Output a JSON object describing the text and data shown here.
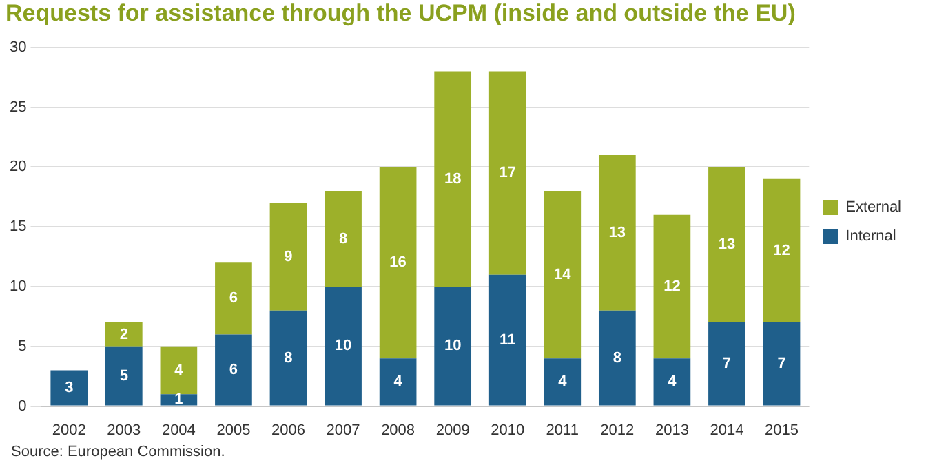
{
  "chart_data": {
    "type": "bar",
    "title": "Requests for assistance through the UCPM (inside and outside the EU)",
    "categories": [
      "2002",
      "2003",
      "2004",
      "2005",
      "2006",
      "2007",
      "2008",
      "2009",
      "2010",
      "2011",
      "2012",
      "2013",
      "2014",
      "2015"
    ],
    "series": [
      {
        "name": "Internal",
        "color": "#1f5f8b",
        "values": [
          3,
          5,
          1,
          6,
          8,
          10,
          4,
          10,
          11,
          4,
          8,
          4,
          7,
          7
        ]
      },
      {
        "name": "External",
        "color": "#9db02a",
        "values": [
          null,
          2,
          4,
          6,
          9,
          8,
          16,
          18,
          17,
          14,
          13,
          12,
          13,
          12
        ]
      }
    ],
    "stacked": true,
    "data_labels": true,
    "ylim": [
      0,
      30
    ],
    "yticks": [
      0,
      5,
      10,
      15,
      20,
      25,
      30
    ],
    "grid": "y",
    "legend": "right",
    "annotations": [
      "Source: European Commission."
    ]
  }
}
